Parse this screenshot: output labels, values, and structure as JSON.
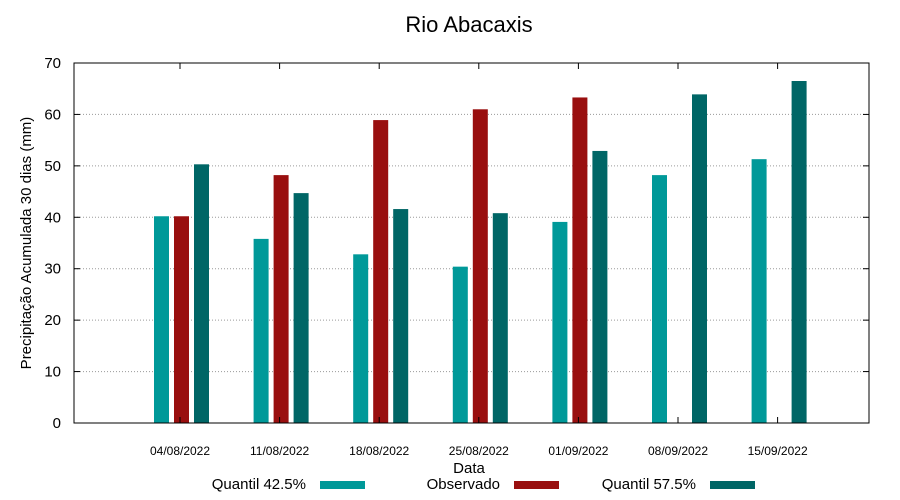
{
  "chart_data": {
    "type": "bar",
    "title": "Rio Abacaxis",
    "xlabel": "Data",
    "ylabel": "Precipitação Acumulada 30 dias (mm)",
    "ylim": [
      0,
      70
    ],
    "yticks": [
      0,
      10,
      20,
      30,
      40,
      50,
      60,
      70
    ],
    "grid": true,
    "legend_position": "bottom",
    "categories": [
      "04/08/2022",
      "11/08/2022",
      "18/08/2022",
      "25/08/2022",
      "01/09/2022",
      "08/09/2022",
      "15/09/2022"
    ],
    "series": [
      {
        "name": "Quantil 42.5%",
        "color": "#009999",
        "values": [
          40.2,
          35.8,
          32.8,
          30.4,
          39.1,
          48.2,
          51.3
        ]
      },
      {
        "name": "Observado",
        "color": "#990f0f",
        "values": [
          40.2,
          48.2,
          58.9,
          61.0,
          63.3,
          null,
          null
        ]
      },
      {
        "name": "Quantil 57.5%",
        "color": "#006666",
        "values": [
          50.3,
          44.7,
          41.6,
          40.8,
          52.9,
          63.9,
          66.5
        ]
      }
    ]
  }
}
